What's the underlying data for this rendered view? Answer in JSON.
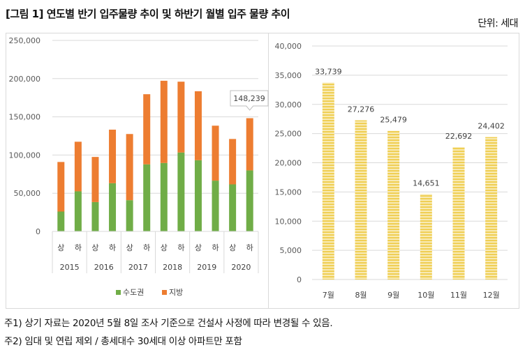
{
  "header": {
    "title": "[그림 1] 연도별 반기 입주물량 추이 및 하반기 월별 입주 물량 추이",
    "unit": "단위: 세대"
  },
  "notes": [
    "주1) 상기 자료는 2020년 5월 8일 조사 기준으로 건설사 사정에 따라 변경될 수 있음.",
    "주2) 임대 및 연립 제외 / 총세대수 30세대 이상 아파트만 포함"
  ],
  "colors": {
    "capital": "#70ad47",
    "regional": "#ed7d31",
    "monthly": "#f0cf55",
    "monthly_stripe": "#f9efc4",
    "grid": "#d9d9d9"
  },
  "chart_data": [
    {
      "type": "bar",
      "stacked": true,
      "title": "",
      "xlabel": "",
      "ylabel": "",
      "ylim": [
        0,
        250000
      ],
      "yticks": [
        "0",
        "50,000",
        "100,000",
        "150,000",
        "200,000",
        "250,000"
      ],
      "ytick_values": [
        0,
        50000,
        100000,
        150000,
        200000,
        250000
      ],
      "grid": true,
      "categories": [
        "상",
        "하",
        "상",
        "하",
        "상",
        "하",
        "상",
        "하",
        "상",
        "하",
        "상",
        "하"
      ],
      "groups": [
        "2015",
        "2016",
        "2017",
        "2018",
        "2019",
        "2020"
      ],
      "series": [
        {
          "name": "수도권",
          "values": [
            26000,
            52500,
            38400,
            63100,
            40900,
            87800,
            89600,
            103300,
            93200,
            66500,
            61600,
            79900
          ]
        },
        {
          "name": "지방",
          "values": [
            64900,
            64900,
            59100,
            70100,
            86600,
            91800,
            107600,
            92700,
            90300,
            71900,
            59400,
            68339
          ]
        }
      ],
      "annotations": [
        {
          "category_index": 11,
          "text": "148,239"
        }
      ],
      "legend": {
        "position": "bottom",
        "entries": [
          "수도권",
          "지방"
        ]
      }
    },
    {
      "type": "bar",
      "title": "",
      "xlabel": "",
      "ylabel": "",
      "ylim": [
        0,
        40000
      ],
      "yticks": [
        "0",
        "5,000",
        "10,000",
        "15,000",
        "20,000",
        "25,000",
        "30,000",
        "35,000",
        "40,000"
      ],
      "ytick_values": [
        0,
        5000,
        10000,
        15000,
        20000,
        25000,
        30000,
        35000,
        40000
      ],
      "grid": true,
      "categories": [
        "7월",
        "8월",
        "9월",
        "10월",
        "11월",
        "12월"
      ],
      "values": [
        33739,
        27276,
        25479,
        14651,
        22692,
        24402
      ],
      "labels": [
        "33,739",
        "27,276",
        "25,479",
        "14,651",
        "22,692",
        "24,402"
      ]
    }
  ]
}
